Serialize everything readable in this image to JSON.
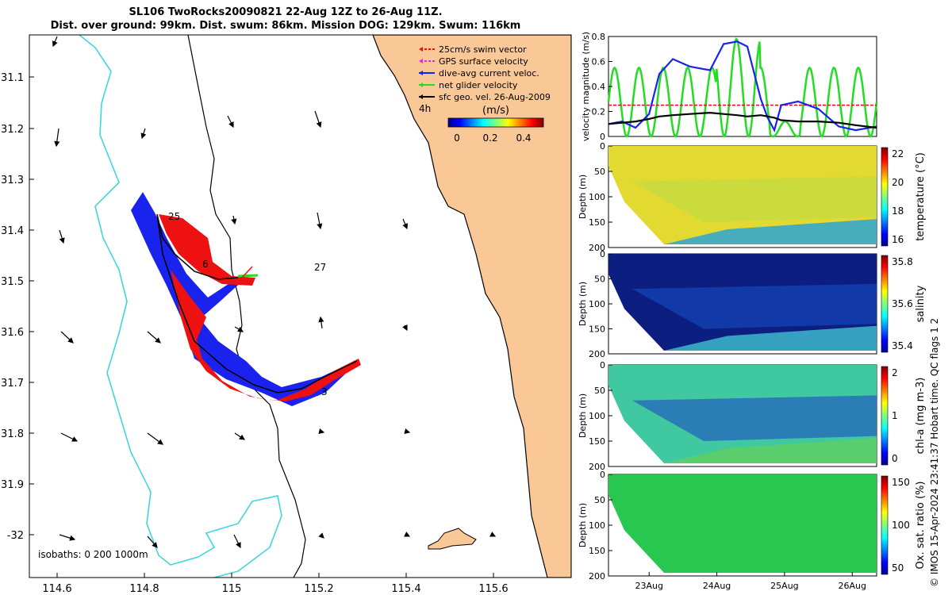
{
  "title_line1": "SL106 TwoRocks20090821 22-Aug 12Z to 26-Aug 11Z.",
  "title_line2": "Dist. over ground: 99km. Dist. swum: 86km. Mission DOG: 129km. Swum: 116km",
  "footer": "© IMOS 15-Apr-2024 23:41:37 Hobart time. QC flags 1  2",
  "colors": {
    "land": "#f9c896",
    "coast_200m": "#3fd6dd",
    "swim": "#ee1111",
    "gps": "#ee22ee",
    "dac": "#1a23ee",
    "net": "#22dd22",
    "geo": "#000000"
  },
  "map": {
    "legend": [
      {
        "label": "25cm/s swim vector",
        "color": "#ee1111",
        "dashed": true
      },
      {
        "label": "GPS surface velocity",
        "color": "#ee22ee",
        "dashed": true
      },
      {
        "label": "dive-avg current veloc.",
        "color": "#1a23ee",
        "dashed": false
      },
      {
        "label": "net glider velocity",
        "color": "#22dd22",
        "dashed": false
      },
      {
        "label": "sfc geo. vel. 26-Aug-2009",
        "color": "#000000",
        "dashed": false
      }
    ],
    "colorbar": {
      "label": "(m/s)",
      "ticks": [
        "0",
        "0.2",
        "0.4"
      ],
      "time_label": "4h"
    },
    "isobaths_label": "isobaths: 0   200  1000m",
    "xticks": [
      "114.6",
      "114.8",
      "115",
      "115.2",
      "115.4",
      "115.6"
    ],
    "yticks": [
      "31.1",
      "31.2",
      "31.3",
      "31.4",
      "31.5",
      "31.6",
      "31.7",
      "31.8",
      "31.9",
      "-32"
    ],
    "day_labels": [
      "25",
      "6",
      "27",
      "3"
    ]
  },
  "chart_data": [
    {
      "type": "line",
      "title": "",
      "ylabel": "velocity magnitude (m/s)",
      "ylim": [
        0,
        0.8
      ],
      "yticks": [
        "0",
        "0.2",
        "0.4",
        "0.6",
        "0.8"
      ],
      "x_days": [
        22.5,
        22.7,
        22.9,
        23.1,
        23.25,
        23.45,
        23.7,
        24.0,
        24.2,
        24.4,
        24.55,
        24.75,
        24.85,
        24.95,
        25.05,
        25.3,
        25.6,
        25.9,
        26.15,
        26.46
      ],
      "series": [
        {
          "name": "swim",
          "color": "#ee1111",
          "values": [
            0.25,
            0.25,
            0.25,
            0.25,
            0.25,
            0.25,
            0.25,
            0.25,
            0.25,
            0.25,
            0.25,
            0.25,
            0.25,
            0.25,
            0.25,
            0.25,
            0.25,
            0.25,
            0.25,
            0.25
          ]
        },
        {
          "name": "dac",
          "color": "#1a23ee",
          "values": [
            0.1,
            0.12,
            0.07,
            0.18,
            0.5,
            0.62,
            0.56,
            0.53,
            0.74,
            0.76,
            0.72,
            0.3,
            0.15,
            0.05,
            0.25,
            0.28,
            0.22,
            0.08,
            0.05,
            0.08
          ]
        },
        {
          "name": "geo",
          "color": "#000000",
          "values": [
            0.1,
            0.11,
            0.12,
            0.14,
            0.16,
            0.17,
            0.18,
            0.19,
            0.18,
            0.17,
            0.16,
            0.17,
            0.16,
            0.15,
            0.13,
            0.12,
            0.12,
            0.11,
            0.09,
            0.07
          ]
        }
      ]
    },
    {
      "type": "heatmap",
      "ylabel": "Depth (m)",
      "yticks": [
        "0",
        "50",
        "100",
        "150",
        "200"
      ],
      "colorbar_label": "temperature (°C)",
      "colorbar_ticks": [
        "16",
        "18",
        "20",
        "22"
      ]
    },
    {
      "type": "heatmap",
      "ylabel": "Depth (m)",
      "yticks": [
        "0",
        "50",
        "100",
        "150",
        "200"
      ],
      "colorbar_label": "salinity",
      "colorbar_ticks": [
        "35.4",
        "35.6",
        "35.8"
      ]
    },
    {
      "type": "heatmap",
      "ylabel": "Depth (m)",
      "yticks": [
        "0",
        "50",
        "100",
        "150",
        "200"
      ],
      "colorbar_label": "chl-a (mg m-3)",
      "colorbar_ticks": [
        "0",
        "1",
        "2"
      ]
    },
    {
      "type": "heatmap",
      "ylabel": "Depth (m)",
      "yticks": [
        "0",
        "50",
        "100",
        "150",
        "200"
      ],
      "colorbar_label": "Ox. sat. ratio (%)",
      "colorbar_ticks": [
        "50",
        "100",
        "150"
      ],
      "xticks": [
        "23Aug",
        "24Aug",
        "25Aug",
        "26Aug"
      ]
    }
  ]
}
